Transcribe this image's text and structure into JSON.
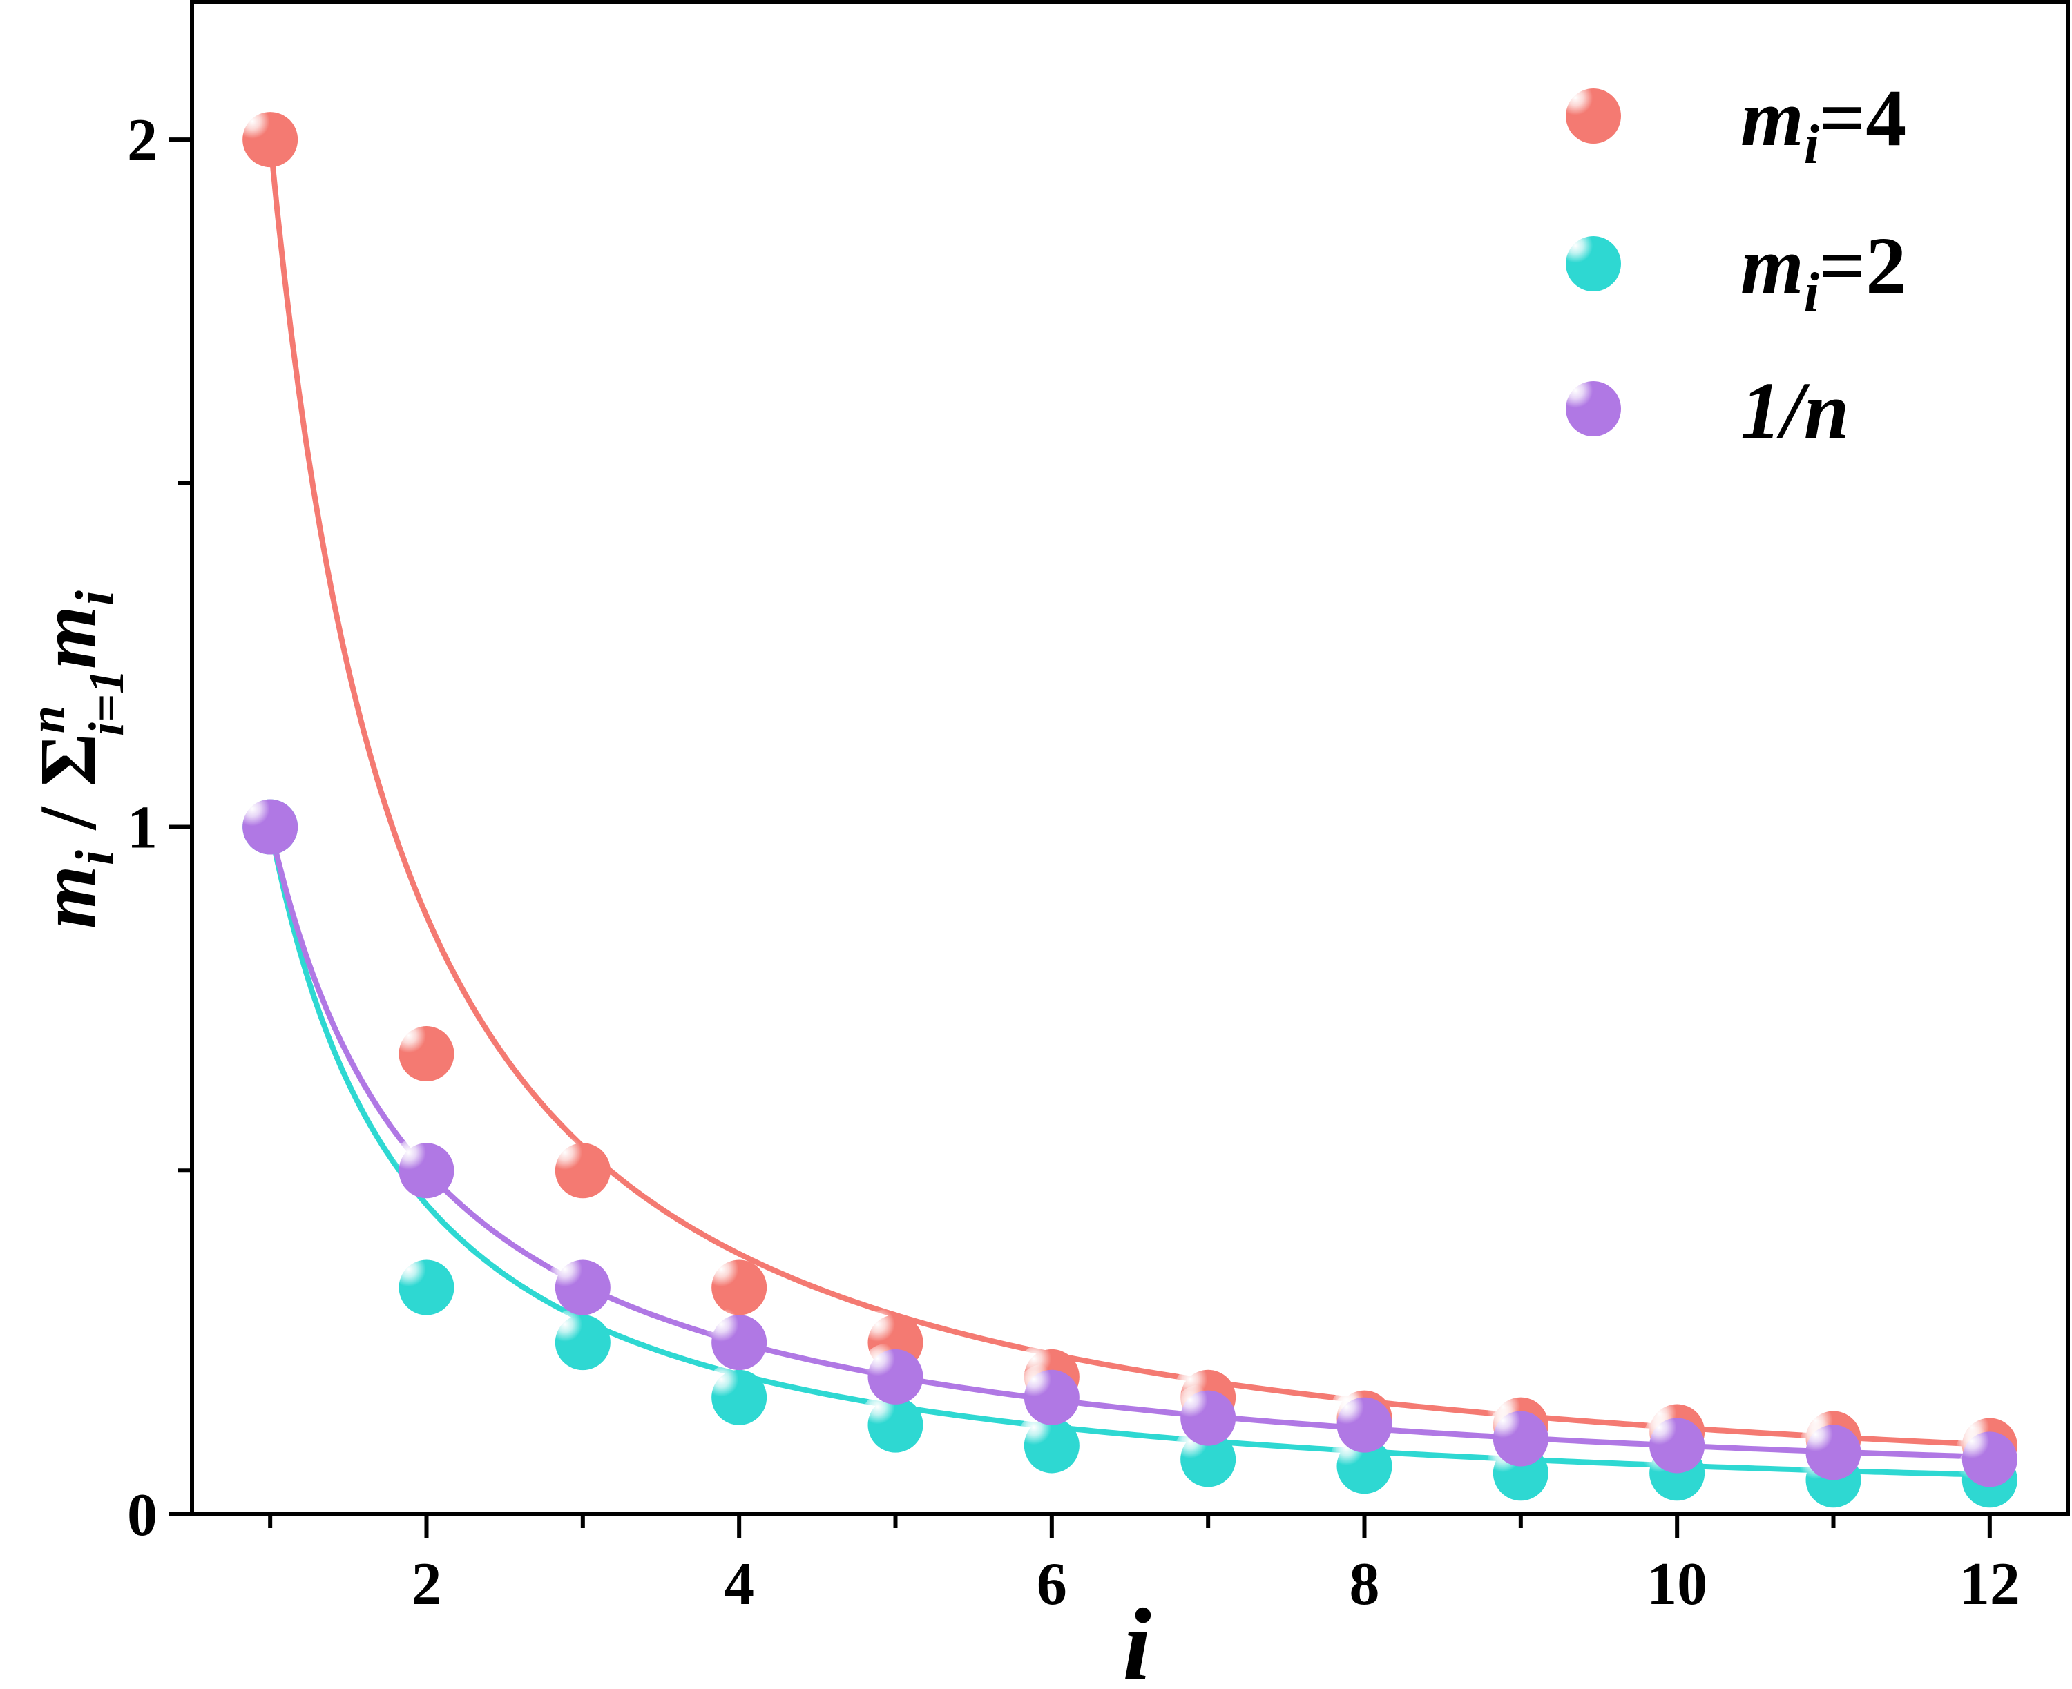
{
  "chart_data": {
    "type": "scatter",
    "title": "",
    "xlabel": "i",
    "ylabel": {
      "m": "m",
      "i": "i",
      "sep": " / ",
      "sigma": "Σ",
      "sup": "n",
      "sub": "i=1",
      "m2": "m",
      "i2": "i"
    },
    "xlim": [
      0.5,
      12.5
    ],
    "ylim": [
      0,
      2.2
    ],
    "x_ticks": [
      2,
      4,
      6,
      8,
      10,
      12
    ],
    "x_minor_ticks": [
      1,
      3,
      5,
      7,
      9,
      11
    ],
    "y_ticks": [
      0,
      1,
      2
    ],
    "y_minor_ticks": [
      0.5,
      1.5
    ],
    "grid": false,
    "legend_position": "top-right",
    "x": [
      1,
      2,
      3,
      4,
      5,
      6,
      7,
      8,
      9,
      10,
      11,
      12
    ],
    "series": [
      {
        "name": {
          "m": "m",
          "sub": "i",
          "rest": "=4"
        },
        "color": "#F47A72",
        "values": [
          2.0,
          0.67,
          0.5,
          0.33,
          0.25,
          0.2,
          0.17,
          0.14,
          0.13,
          0.12,
          0.11,
          0.1
        ],
        "fit": {
          "a": 2.0,
          "p": 1.2
        }
      },
      {
        "name": {
          "m": "m",
          "sub": "i",
          "rest": "=2"
        },
        "color": "#2ED8D2",
        "values": [
          1.0,
          0.33,
          0.25,
          0.17,
          0.13,
          0.1,
          0.08,
          0.07,
          0.06,
          0.06,
          0.05,
          0.05
        ],
        "fit": {
          "a": 1.0,
          "p": 1.15
        }
      },
      {
        "name": {
          "text": "1/n"
        },
        "color": "#B078E4",
        "values": [
          1.0,
          0.5,
          0.33,
          0.25,
          0.2,
          0.17,
          0.14,
          0.13,
          0.11,
          0.1,
          0.09,
          0.08
        ],
        "fit": {
          "a": 1.0,
          "p": 1.0
        }
      }
    ]
  }
}
